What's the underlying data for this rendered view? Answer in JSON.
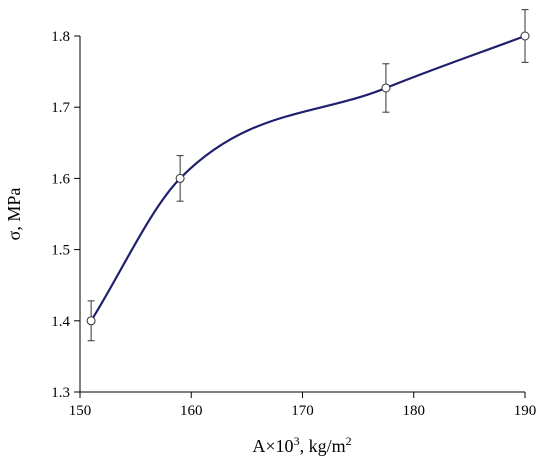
{
  "chart_data": {
    "type": "line",
    "title": "",
    "xlabel": "A×10³, kg/m²",
    "xlabel_parts": {
      "base": "A×10",
      "exp1": "3",
      "mid": ", kg/m",
      "exp2": "2"
    },
    "ylabel": "σ, MPa",
    "xlim": [
      150,
      190
    ],
    "ylim": [
      1.3,
      1.8
    ],
    "xticks": [
      "150",
      "160",
      "170",
      "180",
      "190"
    ],
    "yticks": [
      "1.3",
      "1.4",
      "1.5",
      "1.6",
      "1.7",
      "1.8"
    ],
    "grid": false,
    "legend": "none",
    "series": [
      {
        "x": [
          151,
          159,
          177.5,
          190
        ],
        "y": [
          1.4,
          1.6,
          1.727,
          1.8
        ],
        "error": [
          0.028,
          0.032,
          0.034,
          0.037
        ],
        "marker": "open-circle",
        "line_style": "smooth"
      }
    ],
    "colors": {
      "line": "#1f1f6e",
      "marker_edge": "#333333",
      "error_bar": "#333333"
    }
  }
}
